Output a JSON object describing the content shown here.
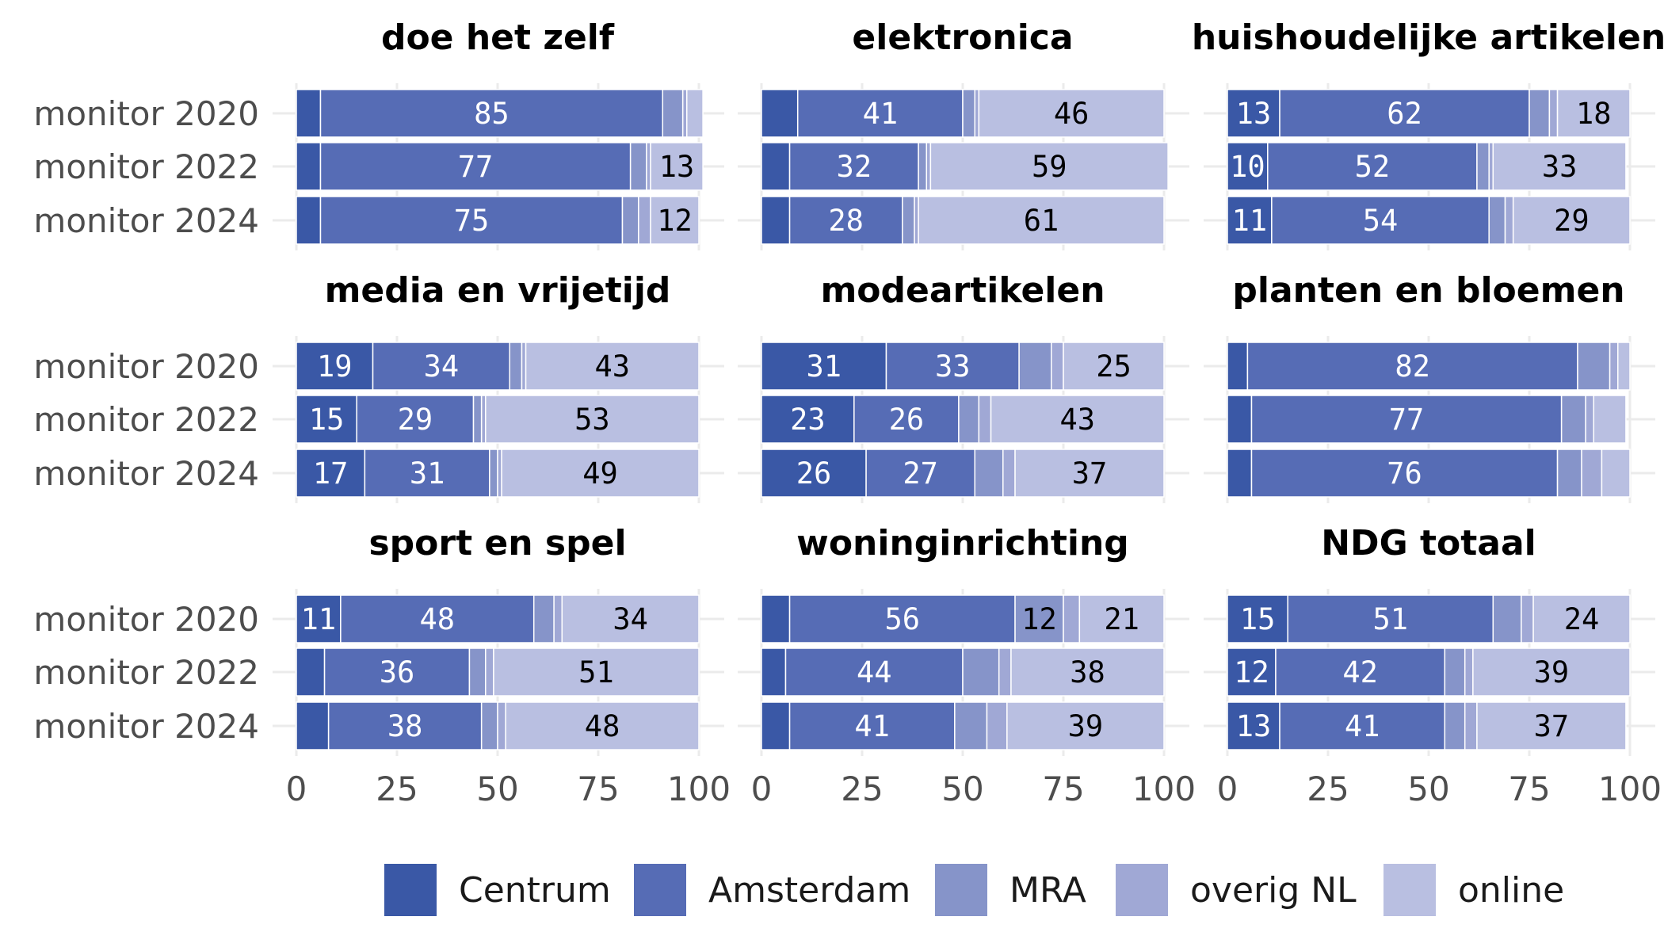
{
  "chart_data": {
    "type": "bar",
    "orientation": "horizontal",
    "stacked": true,
    "x_range": [
      0,
      100
    ],
    "x_ticks": [
      "0",
      "25",
      "50",
      "75",
      "100"
    ],
    "grid": true,
    "legend_position": "bottom",
    "rows": [
      "monitor 2020",
      "monitor 2022",
      "monitor 2024"
    ],
    "series": [
      {
        "name": "Centrum",
        "color": "#3A58A6"
      },
      {
        "name": "Amsterdam",
        "color": "#566CB5"
      },
      {
        "name": "MRA",
        "color": "#8694C9"
      },
      {
        "name": "overig NL",
        "color": "#A0A8D5"
      },
      {
        "name": "online",
        "color": "#B9BFE1"
      }
    ],
    "panels": [
      {
        "title": "doe het zelf",
        "values": [
          [
            6,
            85,
            5,
            1,
            4
          ],
          [
            6,
            77,
            4,
            1,
            13
          ],
          [
            6,
            75,
            4,
            3,
            12
          ]
        ]
      },
      {
        "title": "elektronica",
        "values": [
          [
            9,
            41,
            3,
            1,
            46
          ],
          [
            7,
            32,
            2,
            1,
            59
          ],
          [
            7,
            28,
            3,
            1,
            61
          ]
        ]
      },
      {
        "title": "huishoudelijke artikelen",
        "values": [
          [
            13,
            62,
            5,
            2,
            18
          ],
          [
            10,
            52,
            3,
            1,
            33
          ],
          [
            11,
            54,
            4,
            2,
            29
          ]
        ]
      },
      {
        "title": "media en vrijetijd",
        "values": [
          [
            19,
            34,
            3,
            1,
            43
          ],
          [
            15,
            29,
            2,
            1,
            53
          ],
          [
            17,
            31,
            2,
            1,
            49
          ]
        ]
      },
      {
        "title": "modeartikelen",
        "values": [
          [
            31,
            33,
            8,
            3,
            25
          ],
          [
            23,
            26,
            5,
            3,
            43
          ],
          [
            26,
            27,
            7,
            3,
            37
          ]
        ]
      },
      {
        "title": "planten en bloemen",
        "values": [
          [
            5,
            82,
            8,
            2,
            3
          ],
          [
            6,
            77,
            6,
            2,
            8
          ],
          [
            6,
            76,
            6,
            5,
            7
          ]
        ]
      },
      {
        "title": "sport en spel",
        "values": [
          [
            11,
            48,
            5,
            2,
            34
          ],
          [
            7,
            36,
            4,
            2,
            51
          ],
          [
            8,
            38,
            4,
            2,
            48
          ]
        ]
      },
      {
        "title": "woninginrichting",
        "values": [
          [
            7,
            56,
            12,
            4,
            21
          ],
          [
            6,
            44,
            9,
            3,
            38
          ],
          [
            7,
            41,
            8,
            5,
            39
          ]
        ]
      },
      {
        "title": "NDG totaal",
        "values": [
          [
            15,
            51,
            7,
            3,
            24
          ],
          [
            12,
            42,
            5,
            2,
            39
          ],
          [
            13,
            41,
            5,
            3,
            37
          ]
        ]
      }
    ],
    "label_threshold": 10
  }
}
